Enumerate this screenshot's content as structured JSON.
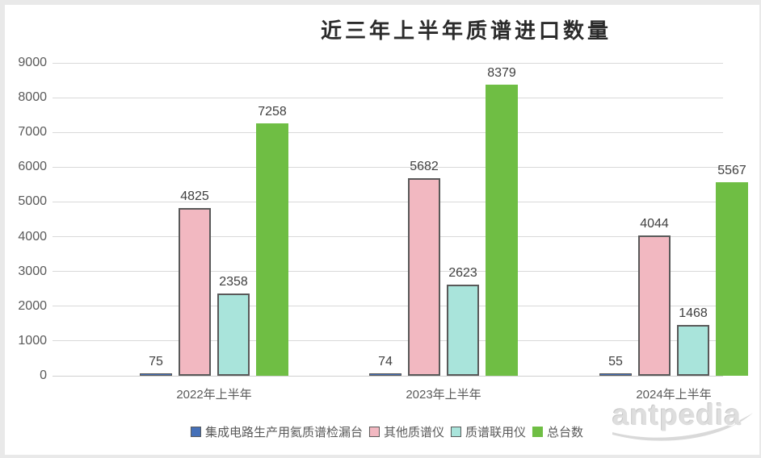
{
  "chart_data": {
    "type": "bar",
    "title": "近三年上半年质谱进口数量",
    "categories": [
      "2022年上半年",
      "2023年上半年",
      "2024年上半年"
    ],
    "series": [
      {
        "name": "集成电路生产用氦质谱检漏台",
        "color": "#4570b8",
        "border": "#595959",
        "values": [
          75,
          74,
          55
        ]
      },
      {
        "name": "其他质谱仪",
        "color": "#f2b8c1",
        "border": "#595959",
        "values": [
          4825,
          5682,
          4044
        ]
      },
      {
        "name": "质谱联用仪",
        "color": "#a9e4db",
        "border": "#595959",
        "values": [
          2358,
          2623,
          1468
        ]
      },
      {
        "name": "总台数",
        "color": "#6fbe44",
        "border": null,
        "values": [
          7258,
          8379,
          5567
        ]
      }
    ],
    "ylim": [
      0,
      9000
    ],
    "yticks": [
      0,
      1000,
      2000,
      3000,
      4000,
      5000,
      6000,
      7000,
      8000,
      9000
    ],
    "grid": true,
    "legend_position": "bottom",
    "data_labels": true,
    "colors": {
      "gridline": "#d9d9d9",
      "axis_text": "#595959",
      "data_label_text": "#3f3f3f",
      "title_text": "#2b2b2b"
    }
  },
  "watermark": {
    "text": "antpedia"
  }
}
